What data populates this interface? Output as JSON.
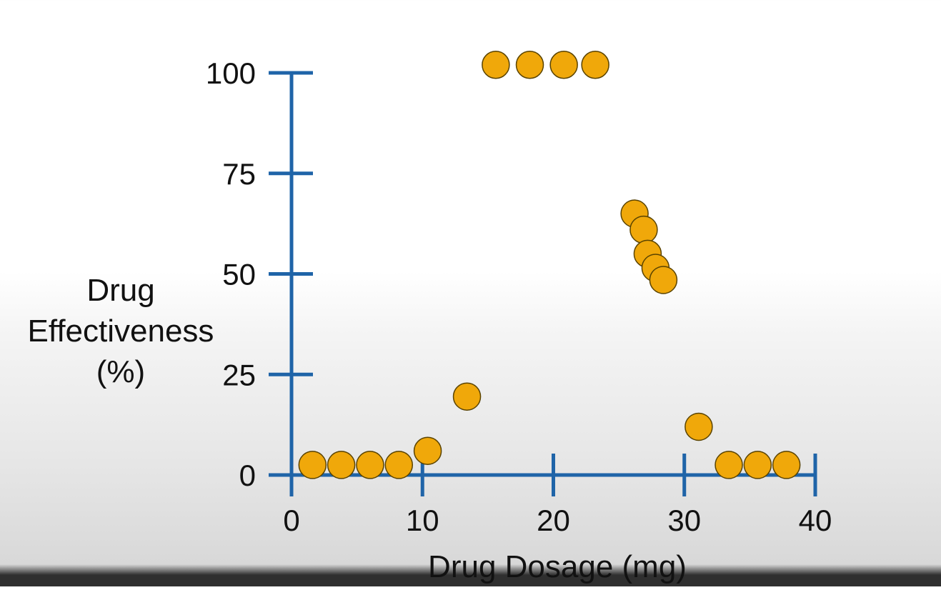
{
  "colors": {
    "axis": "#1f64a8",
    "point_fill": "#f0a80a",
    "point_stroke": "#5a4300",
    "text": "#111111"
  },
  "chart_data": {
    "type": "scatter",
    "title": "",
    "xlabel": "Drug Dosage (mg)",
    "ylabel": [
      "Drug",
      "Effectiveness",
      "(%)"
    ],
    "xlim": [
      0,
      40
    ],
    "ylim": [
      0,
      100
    ],
    "xticks": [
      0,
      10,
      20,
      30,
      40
    ],
    "yticks": [
      0,
      25,
      50,
      75,
      100
    ],
    "grid": false,
    "legend": "none",
    "points": [
      {
        "x": 1.6,
        "y": 2.5
      },
      {
        "x": 3.8,
        "y": 2.5
      },
      {
        "x": 6.0,
        "y": 2.5
      },
      {
        "x": 8.2,
        "y": 2.5
      },
      {
        "x": 10.4,
        "y": 6
      },
      {
        "x": 13.4,
        "y": 19.5
      },
      {
        "x": 15.6,
        "y": 102
      },
      {
        "x": 18.2,
        "y": 102
      },
      {
        "x": 20.8,
        "y": 102
      },
      {
        "x": 23.2,
        "y": 102
      },
      {
        "x": 26.2,
        "y": 65
      },
      {
        "x": 26.9,
        "y": 61
      },
      {
        "x": 27.2,
        "y": 55
      },
      {
        "x": 27.8,
        "y": 51.5
      },
      {
        "x": 28.4,
        "y": 48.5
      },
      {
        "x": 31.1,
        "y": 12
      },
      {
        "x": 33.4,
        "y": 2.5
      },
      {
        "x": 35.6,
        "y": 2.5
      },
      {
        "x": 37.8,
        "y": 2.5
      }
    ]
  }
}
